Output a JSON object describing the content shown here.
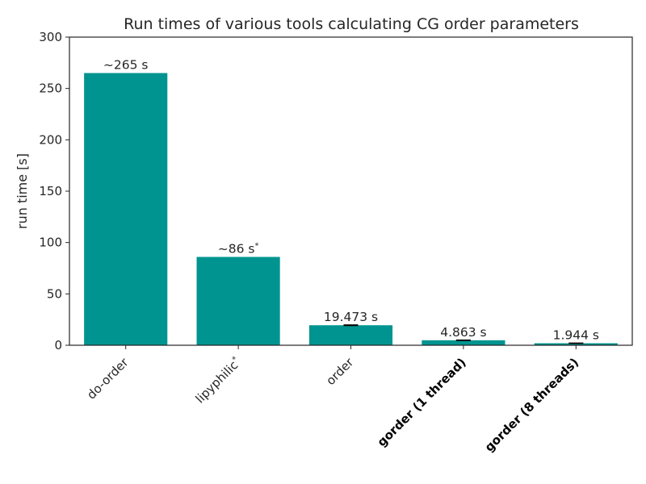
{
  "chart_data": {
    "type": "bar",
    "title": "Run times of various tools calculating CG order parameters",
    "ylabel": "run time [s]",
    "ylim": [
      0,
      300
    ],
    "yticks": [
      0,
      50,
      100,
      150,
      200,
      250,
      300
    ],
    "bar_color": "#009490",
    "categories": [
      {
        "label": "do-order",
        "bold": false,
        "sup": ""
      },
      {
        "label": "lipyphilic",
        "bold": false,
        "sup": "*"
      },
      {
        "label": "order",
        "bold": false,
        "sup": ""
      },
      {
        "label": "gorder (1 thread)",
        "bold": true,
        "sup": ""
      },
      {
        "label": "gorder (8 threads)",
        "bold": true,
        "sup": ""
      }
    ],
    "values": [
      265,
      86,
      19.473,
      4.863,
      1.944
    ],
    "errors": [
      0,
      0,
      0.3,
      0.2,
      0.15
    ],
    "data_labels": [
      {
        "text": "~265 s",
        "sup": ""
      },
      {
        "text": "~86 s",
        "sup": "*"
      },
      {
        "text": "19.473 s",
        "sup": ""
      },
      {
        "text": "4.863 s",
        "sup": ""
      },
      {
        "text": "1.944 s",
        "sup": ""
      }
    ]
  }
}
